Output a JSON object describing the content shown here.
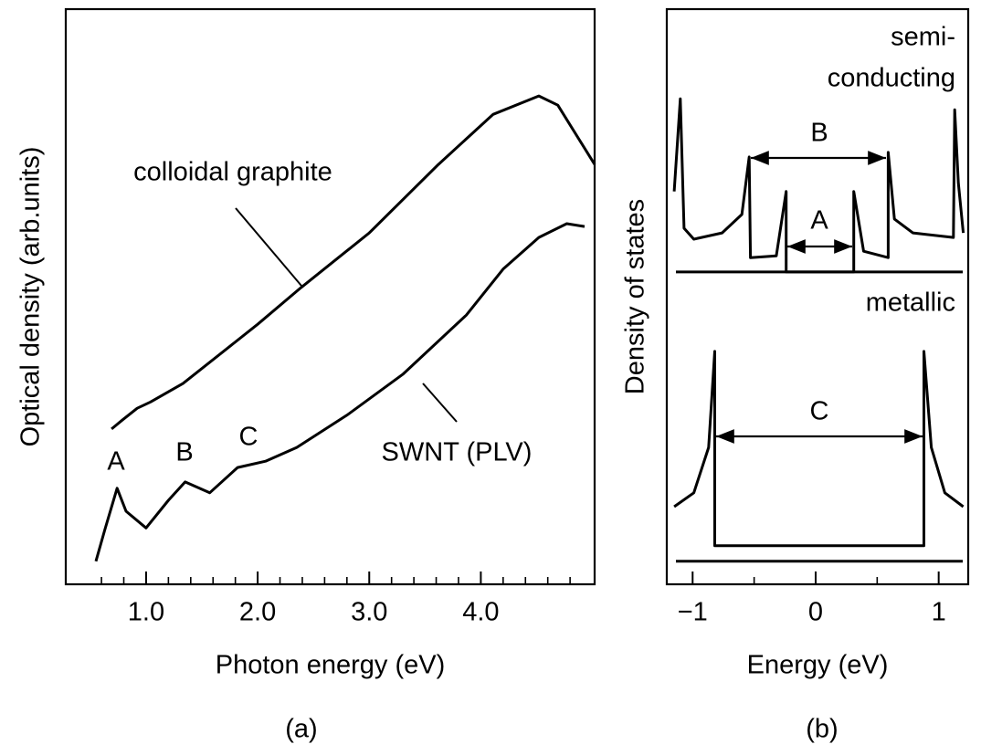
{
  "chart_data": [
    {
      "type": "line",
      "panel_label": "(a)",
      "xlabel": "Photon energy (eV)",
      "ylabel": "Optical density (arb.units)",
      "xlim": [
        0.28,
        5.02
      ],
      "ylim": [
        0,
        10
      ],
      "xticks": [
        {
          "value": 1,
          "label": "1.0"
        },
        {
          "value": 2,
          "label": "2.0"
        },
        {
          "value": 3,
          "label": "3.0"
        },
        {
          "value": 4,
          "label": "4.0"
        }
      ],
      "xminorticks": [
        0.6,
        0.8,
        1.2,
        1.4,
        1.6,
        1.8,
        2.2,
        2.4,
        2.6,
        2.8,
        3.2,
        3.4,
        3.6,
        3.8,
        4.2,
        4.4,
        4.6,
        4.8
      ],
      "annotations": [
        "colloidal graphite",
        "SWNT (PLV)",
        "A",
        "B",
        "C"
      ],
      "series": [
        {
          "color": "#000000",
          "x": [
            0.69,
            0.79,
            0.92,
            1.04,
            1.33,
            2.0,
            2.39,
            3.0,
            3.62,
            4.11,
            4.52,
            4.69,
            5.02
          ],
          "values": [
            2.7,
            2.86,
            3.06,
            3.17,
            3.49,
            4.52,
            5.16,
            6.11,
            7.3,
            8.17,
            8.49,
            8.33,
            7.3
          ]
        },
        {
          "color": "#000000",
          "x": [
            0.55,
            0.63,
            0.74,
            0.82,
            1.0,
            1.2,
            1.35,
            1.57,
            1.82,
            2.07,
            2.35,
            2.8,
            3.3,
            3.87,
            4.2,
            4.52,
            4.77,
            4.93
          ],
          "values": [
            0.4,
            0.95,
            1.67,
            1.27,
            0.98,
            1.46,
            1.78,
            1.59,
            2.03,
            2.14,
            2.38,
            2.94,
            3.65,
            4.68,
            5.48,
            6.03,
            6.27,
            6.22
          ]
        }
      ]
    },
    {
      "type": "line",
      "panel_label": "(b)",
      "xlabel": "Energy (eV)",
      "ylabel": "Density of states",
      "xlim": [
        -1.21,
        1.24
      ],
      "ylim": [
        0,
        10
      ],
      "xticks": [
        {
          "value": -1,
          "label": "−1"
        },
        0,
        1
      ],
      "xminorticks": [
        -0.5,
        0.5
      ],
      "baselines": [
        5.43,
        0.4
      ],
      "annotations": [
        "semi-",
        "conducting",
        "metallic",
        "A",
        "B",
        "C"
      ],
      "series": [
        {
          "color": "#000000",
          "x": [
            -1.15,
            -1.1,
            -1.07,
            -0.99,
            -0.76,
            -0.6,
            -0.54,
            -0.53,
            -0.32,
            -0.24,
            -0.24,
            0.31,
            0.31,
            0.39,
            0.59,
            0.59,
            0.64,
            0.79,
            1.12,
            1.13,
            1.16,
            1.2
          ],
          "values": [
            6.83,
            8.44,
            6.19,
            6.0,
            6.11,
            6.43,
            7.43,
            5.68,
            5.71,
            6.83,
            5.43,
            5.43,
            6.83,
            5.79,
            5.68,
            7.51,
            6.35,
            6.11,
            6.03,
            8.25,
            6.98,
            6.11
          ]
        },
        {
          "color": "#000000",
          "x": [
            -1.15,
            -0.99,
            -0.87,
            -0.82,
            -0.82,
            0.88,
            0.88,
            0.94,
            1.05,
            1.2
          ],
          "values": [
            1.35,
            1.59,
            2.38,
            4.05,
            0.67,
            0.67,
            4.05,
            2.38,
            1.59,
            1.35
          ]
        }
      ]
    }
  ]
}
